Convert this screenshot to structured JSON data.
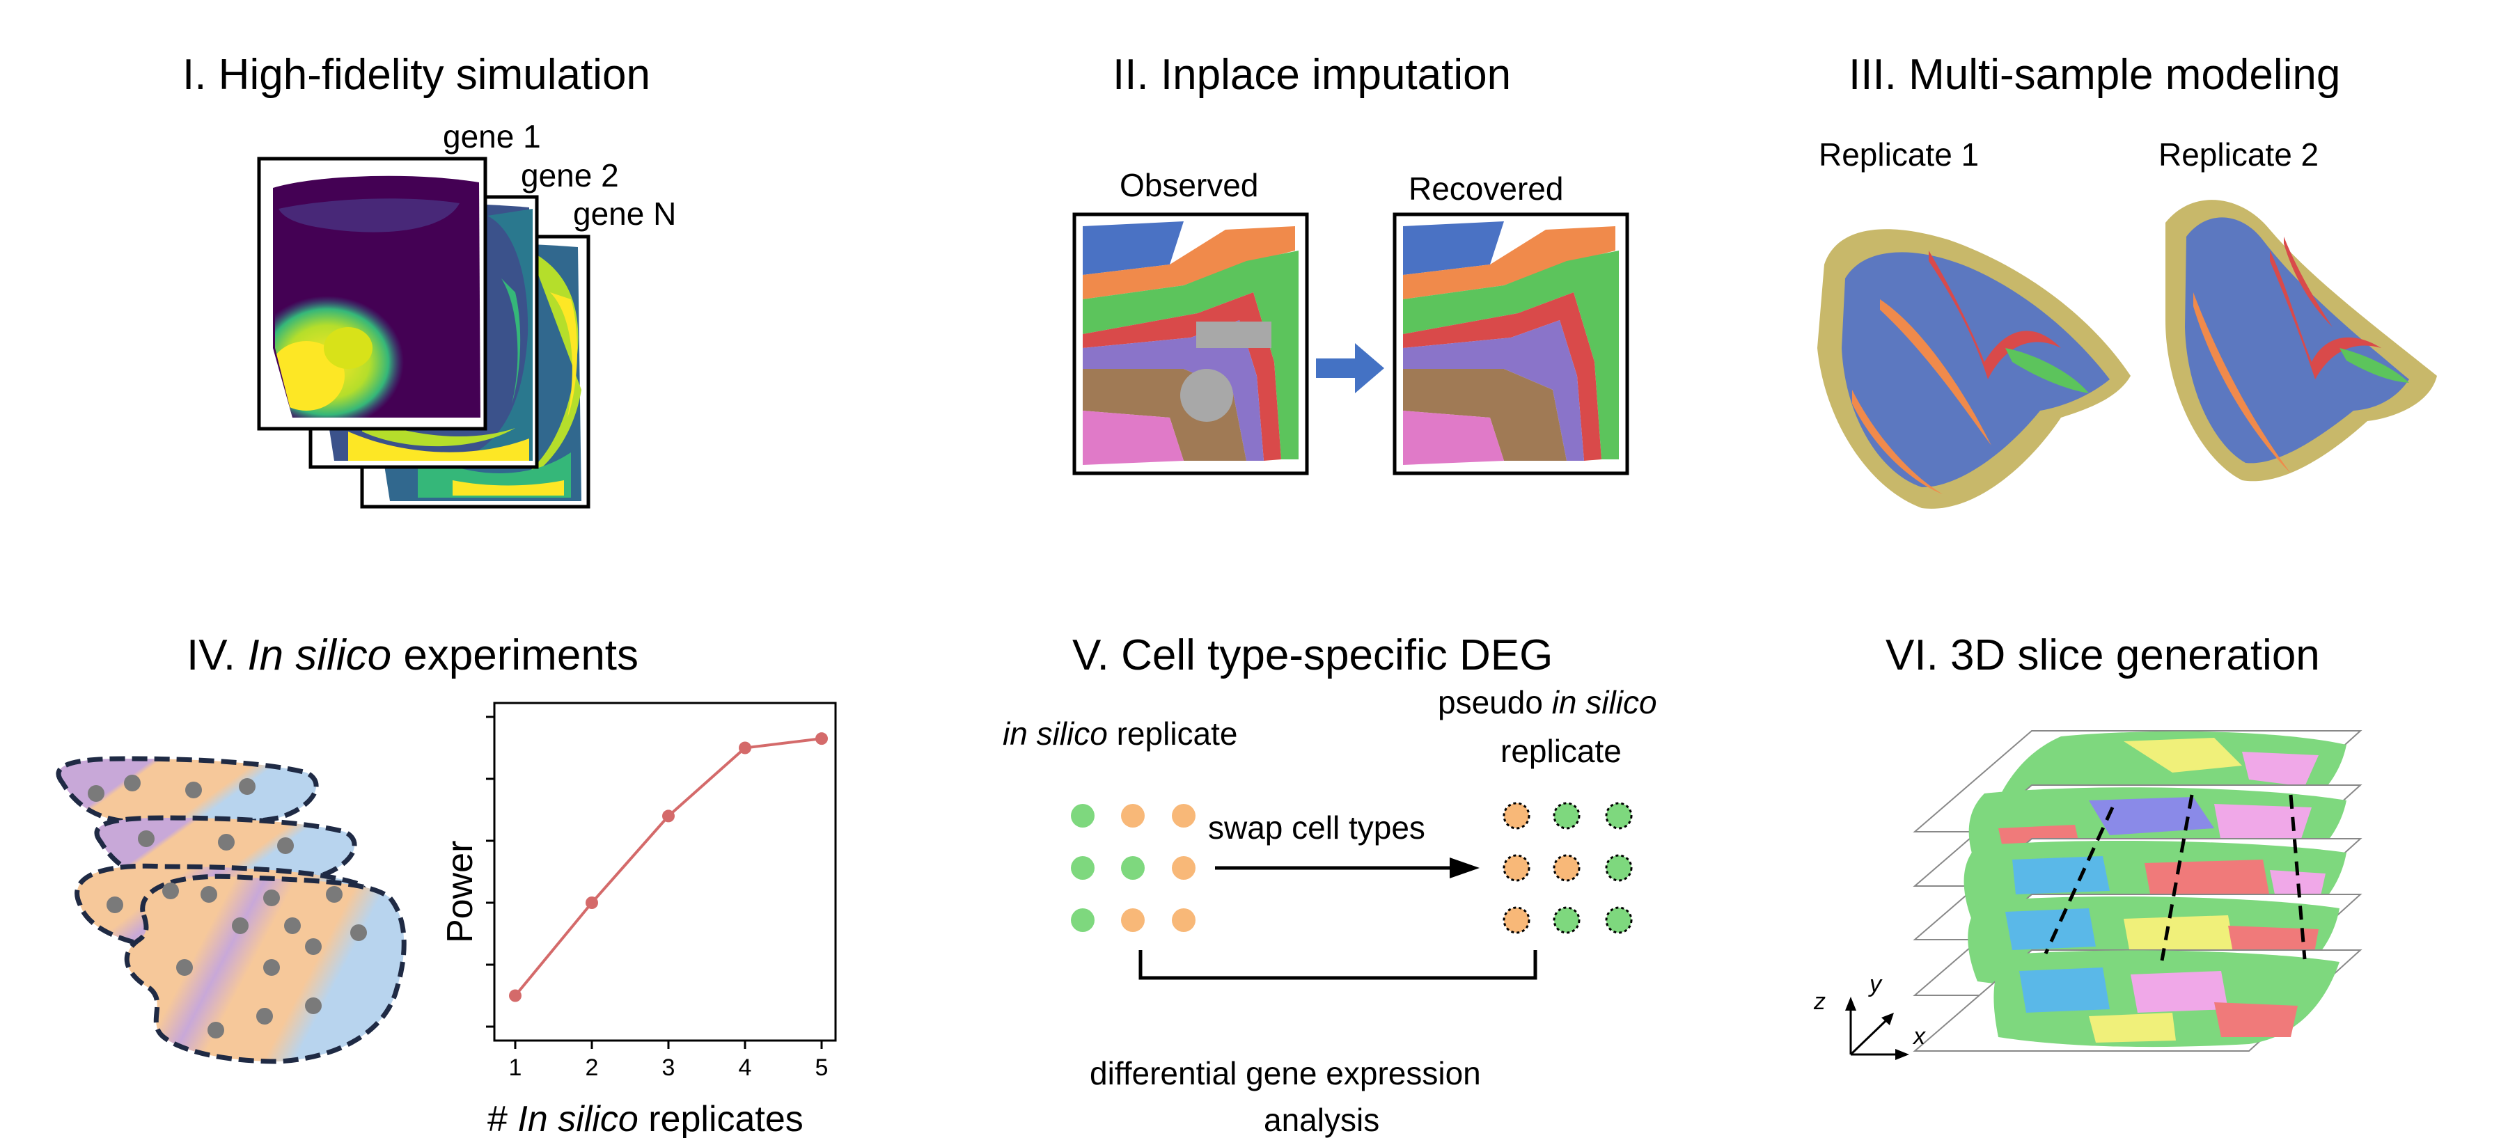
{
  "panels": {
    "p1": {
      "title": "I. High-fidelity simulation",
      "layers": [
        "gene 1",
        "gene 2",
        "gene N"
      ]
    },
    "p2": {
      "title": "II. Inplace imputation",
      "observed_label": "Observed",
      "recovered_label": "Recovered"
    },
    "p3": {
      "title": "III. Multi-sample modeling",
      "replicate1_label": "Replicate 1",
      "replicate2_label": "Replicate 2"
    },
    "p4": {
      "title_prefix": "IV. ",
      "title_italic": "In silico",
      "title_suffix": " experiments",
      "ylabel": "Power",
      "xlabel_prefix": "# ",
      "xlabel_italic": "In silico",
      "xlabel_suffix": " replicates"
    },
    "p5": {
      "title": "V. Cell type-specific DEG",
      "left_label_italic": "in silico",
      "left_label_suffix": " replicate",
      "right_label_prefix": "pseudo ",
      "right_label_italic": "in silico",
      "right_label_line2": "replicate",
      "swap_label": "swap cell types",
      "bottom_line1": "differential gene expression",
      "bottom_line2": "analysis"
    },
    "p6": {
      "title": "VI. 3D slice generation",
      "axis_x": "x",
      "axis_y": "y",
      "axis_z": "z"
    }
  },
  "colors": {
    "viridis_dark": "#440154",
    "viridis_mid": "#31688e",
    "viridis_green": "#35b779",
    "viridis_yellow": "#fde725",
    "layer_blue": "#4a72c4",
    "layer_orange": "#f08a4b",
    "layer_green": "#5cc45c",
    "layer_red": "#d94a4a",
    "layer_purple": "#8a74c9",
    "layer_brown": "#a07a55",
    "layer_pink": "#e07ac8",
    "mask_gray": "#a8a8a8",
    "arrow_blue": "#4472c4",
    "replicate_khaki": "#c8b86a",
    "plot_line": "#d46a6a",
    "dot_green": "#7ed87e",
    "dot_orange": "#f8b878",
    "tissue_orange": "#f6c89a",
    "tissue_blue": "#b8d4ee",
    "tissue_purple": "#c8a8d8",
    "tissue_dot": "#7a7a7a"
  },
  "chart_data": {
    "type": "line",
    "x": [
      1,
      2,
      3,
      4,
      5
    ],
    "y": [
      0.1,
      0.4,
      0.68,
      0.9,
      0.93
    ],
    "xlabel": "# In silico replicates",
    "ylabel": "Power",
    "xticks": [
      "1",
      "2",
      "3",
      "4",
      "5"
    ],
    "ylim": [
      0,
      1
    ],
    "grid": false,
    "color": "#d46a6a"
  }
}
